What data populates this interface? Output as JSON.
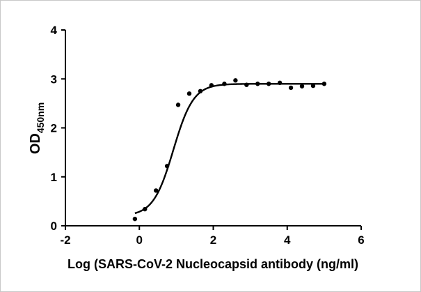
{
  "chart_data": {
    "type": "scatter",
    "title": "",
    "xlabel": "Log (SARS-CoV-2 Nucleocapsid antibody (ng/ml)",
    "ylabel": {
      "main": "OD",
      "subscript": "450nm"
    },
    "xlim": [
      -2,
      6
    ],
    "ylim": [
      0,
      4
    ],
    "xticks": [
      "-2",
      "0",
      "2",
      "4",
      "6"
    ],
    "yticks": [
      "0",
      "1",
      "2",
      "3",
      "4"
    ],
    "grid": false,
    "legend": "none",
    "points": [
      {
        "x": -0.12,
        "y": 0.14
      },
      {
        "x": 0.15,
        "y": 0.34
      },
      {
        "x": 0.45,
        "y": 0.72
      },
      {
        "x": 0.75,
        "y": 1.22
      },
      {
        "x": 1.05,
        "y": 2.47
      },
      {
        "x": 1.35,
        "y": 2.7
      },
      {
        "x": 1.65,
        "y": 2.75
      },
      {
        "x": 1.95,
        "y": 2.87
      },
      {
        "x": 2.3,
        "y": 2.9
      },
      {
        "x": 2.6,
        "y": 2.97
      },
      {
        "x": 2.9,
        "y": 2.88
      },
      {
        "x": 3.2,
        "y": 2.9
      },
      {
        "x": 3.5,
        "y": 2.9
      },
      {
        "x": 3.8,
        "y": 2.92
      },
      {
        "x": 4.1,
        "y": 2.82
      },
      {
        "x": 4.4,
        "y": 2.85
      },
      {
        "x": 4.7,
        "y": 2.86
      },
      {
        "x": 5.0,
        "y": 2.9
      }
    ],
    "fit": {
      "type": "4-parameter logistic",
      "bottom": 0.2,
      "top": 2.9,
      "log_ec50": 0.92,
      "hill_slope": 1.6,
      "x_range": [
        -0.12,
        5.0
      ]
    },
    "colors": {
      "points": "#000000",
      "curve": "#000000",
      "axes": "#000000"
    }
  }
}
